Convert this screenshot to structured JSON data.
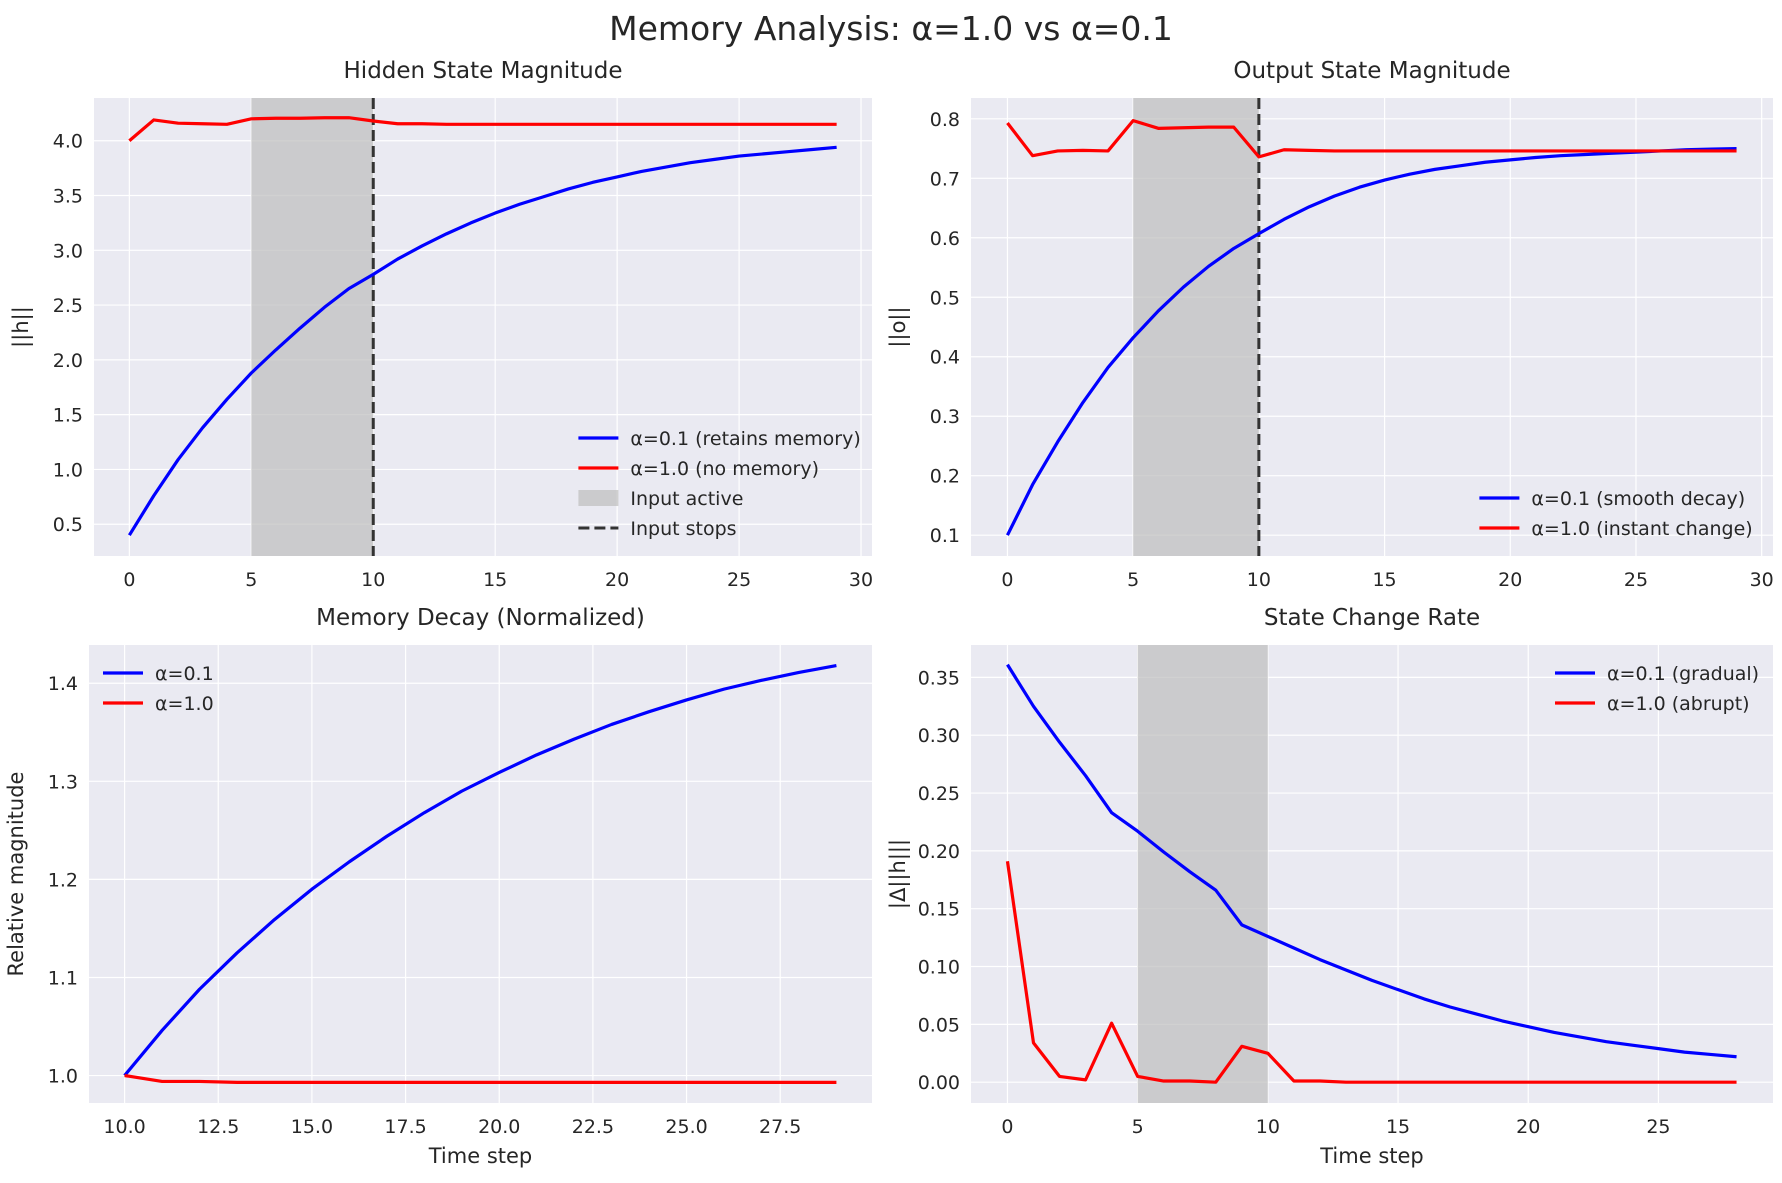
{
  "figure_title": "Memory Analysis: α=1.0 vs α=0.1",
  "colors": {
    "blue": "#0000ff",
    "red": "#ff0000",
    "axes_bg": "#eaeaf2",
    "grid": "#ffffff",
    "shade": "#bdbdbd",
    "vline": "#333333",
    "text": "#262626"
  },
  "chart_data": [
    {
      "type": "line",
      "title": "Hidden State Magnitude",
      "xlabel": "",
      "ylabel": "||h||",
      "xlim": [
        -1.45,
        30.45
      ],
      "ylim": [
        0.21,
        4.39
      ],
      "xticks": [
        0,
        5,
        10,
        15,
        20,
        25,
        30
      ],
      "yticks": [
        0.5,
        1.0,
        1.5,
        2.0,
        2.5,
        3.0,
        3.5,
        4.0
      ],
      "ytick_format": 1,
      "grid": true,
      "shade": {
        "x": [
          5,
          10
        ],
        "label": "Input active"
      },
      "vline": {
        "x": 10,
        "label": "Input stops"
      },
      "legend": "lower-right",
      "series": [
        {
          "name": "α=0.1 (retains memory)",
          "color": "#0000ff",
          "x": [
            0,
            1,
            2,
            3,
            4,
            5,
            6,
            7,
            8,
            9,
            10,
            11,
            12,
            13,
            14,
            15,
            16,
            17,
            18,
            19,
            20,
            21,
            22,
            23,
            24,
            25,
            26,
            27,
            28,
            29
          ],
          "values": [
            0.4,
            0.76,
            1.09,
            1.38,
            1.64,
            1.88,
            2.09,
            2.29,
            2.48,
            2.65,
            2.78,
            2.92,
            3.04,
            3.15,
            3.25,
            3.34,
            3.42,
            3.49,
            3.56,
            3.62,
            3.67,
            3.72,
            3.76,
            3.8,
            3.83,
            3.86,
            3.88,
            3.9,
            3.92,
            3.94
          ]
        },
        {
          "name": "α=1.0 (no memory)",
          "color": "#ff0000",
          "x": [
            0,
            1,
            2,
            3,
            4,
            5,
            6,
            7,
            8,
            9,
            10,
            11,
            12,
            13,
            14,
            15,
            16,
            17,
            18,
            19,
            20,
            21,
            22,
            23,
            24,
            25,
            26,
            27,
            28,
            29
          ],
          "values": [
            4.0,
            4.19,
            4.16,
            4.155,
            4.15,
            4.2,
            4.205,
            4.205,
            4.21,
            4.21,
            4.18,
            4.155,
            4.155,
            4.15,
            4.15,
            4.15,
            4.15,
            4.15,
            4.15,
            4.15,
            4.15,
            4.15,
            4.15,
            4.15,
            4.15,
            4.15,
            4.15,
            4.15,
            4.15,
            4.15
          ]
        }
      ]
    },
    {
      "type": "line",
      "title": "Output State Magnitude",
      "xlabel": "",
      "ylabel": "||o||",
      "xlim": [
        -1.45,
        30.45
      ],
      "ylim": [
        0.065,
        0.835
      ],
      "xticks": [
        0,
        5,
        10,
        15,
        20,
        25,
        30
      ],
      "yticks": [
        0.1,
        0.2,
        0.3,
        0.4,
        0.5,
        0.6,
        0.7,
        0.8
      ],
      "ytick_format": 1,
      "grid": true,
      "shade": {
        "x": [
          5,
          10
        ]
      },
      "vline": {
        "x": 10
      },
      "legend": "lower-right",
      "series": [
        {
          "name": "α=0.1 (smooth decay)",
          "color": "#0000ff",
          "x": [
            0,
            1,
            2,
            3,
            4,
            5,
            6,
            7,
            8,
            9,
            10,
            11,
            12,
            13,
            14,
            15,
            16,
            17,
            18,
            19,
            20,
            21,
            22,
            23,
            24,
            25,
            26,
            27,
            28,
            29
          ],
          "values": [
            0.1,
            0.185,
            0.257,
            0.323,
            0.382,
            0.432,
            0.477,
            0.517,
            0.552,
            0.582,
            0.607,
            0.631,
            0.652,
            0.67,
            0.685,
            0.697,
            0.707,
            0.715,
            0.721,
            0.727,
            0.731,
            0.735,
            0.738,
            0.74,
            0.742,
            0.744,
            0.746,
            0.748,
            0.749,
            0.75
          ]
        },
        {
          "name": "α=1.0 (instant change)",
          "color": "#ff0000",
          "x": [
            0,
            1,
            2,
            3,
            4,
            5,
            6,
            7,
            8,
            9,
            10,
            11,
            12,
            13,
            14,
            15,
            16,
            17,
            18,
            19,
            20,
            21,
            22,
            23,
            24,
            25,
            26,
            27,
            28,
            29
          ],
          "values": [
            0.793,
            0.738,
            0.746,
            0.747,
            0.746,
            0.797,
            0.784,
            0.785,
            0.786,
            0.786,
            0.736,
            0.748,
            0.747,
            0.746,
            0.746,
            0.746,
            0.746,
            0.746,
            0.746,
            0.746,
            0.746,
            0.746,
            0.746,
            0.746,
            0.746,
            0.746,
            0.746,
            0.746,
            0.746,
            0.746
          ]
        }
      ]
    },
    {
      "type": "line",
      "title": "Memory Decay (Normalized)",
      "xlabel": "Time step",
      "ylabel": "Relative magnitude",
      "xlim": [
        9.05,
        29.95
      ],
      "ylim": [
        0.972,
        1.439
      ],
      "xticks": [
        10.0,
        12.5,
        15.0,
        17.5,
        20.0,
        22.5,
        25.0,
        27.5
      ],
      "yticks": [
        1.0,
        1.1,
        1.2,
        1.3,
        1.4
      ],
      "xtick_format": 1,
      "ytick_format": 1,
      "grid": true,
      "legend": "upper-left",
      "series": [
        {
          "name": "α=0.1",
          "color": "#0000ff",
          "x": [
            10,
            11,
            12,
            13,
            14,
            15,
            16,
            17,
            18,
            19,
            20,
            21,
            22,
            23,
            24,
            25,
            26,
            27,
            28,
            29
          ],
          "values": [
            1.0,
            1.046,
            1.088,
            1.125,
            1.159,
            1.19,
            1.218,
            1.244,
            1.268,
            1.29,
            1.309,
            1.327,
            1.343,
            1.358,
            1.371,
            1.383,
            1.394,
            1.403,
            1.411,
            1.418
          ]
        },
        {
          "name": "α=1.0",
          "color": "#ff0000",
          "x": [
            10,
            11,
            12,
            13,
            14,
            15,
            16,
            17,
            18,
            19,
            20,
            21,
            22,
            23,
            24,
            25,
            26,
            27,
            28,
            29
          ],
          "values": [
            1.0,
            0.994,
            0.994,
            0.993,
            0.993,
            0.993,
            0.993,
            0.993,
            0.993,
            0.993,
            0.993,
            0.993,
            0.993,
            0.993,
            0.993,
            0.993,
            0.993,
            0.993,
            0.993,
            0.993
          ]
        }
      ]
    },
    {
      "type": "line",
      "title": "State Change Rate",
      "xlabel": "Time step",
      "ylabel": "|Δ||h|||",
      "xlim": [
        -1.4,
        29.4
      ],
      "ylim": [
        -0.018,
        0.378
      ],
      "xticks": [
        0,
        5,
        10,
        15,
        20,
        25
      ],
      "yticks": [
        0.0,
        0.05,
        0.1,
        0.15,
        0.2,
        0.25,
        0.3,
        0.35
      ],
      "ytick_format": 2,
      "grid": true,
      "shade": {
        "x": [
          5,
          10
        ]
      },
      "legend": "upper-right",
      "series": [
        {
          "name": "α=0.1 (gradual)",
          "color": "#0000ff",
          "x": [
            0,
            1,
            2,
            3,
            4,
            5,
            6,
            7,
            8,
            9,
            10,
            11,
            12,
            13,
            14,
            15,
            16,
            17,
            18,
            19,
            20,
            21,
            22,
            23,
            24,
            25,
            26,
            27,
            28
          ],
          "values": [
            0.361,
            0.325,
            0.294,
            0.265,
            0.233,
            0.217,
            0.199,
            0.182,
            0.166,
            0.136,
            0.126,
            0.116,
            0.106,
            0.097,
            0.088,
            0.08,
            0.072,
            0.065,
            0.059,
            0.053,
            0.048,
            0.043,
            0.039,
            0.035,
            0.032,
            0.029,
            0.026,
            0.024,
            0.022
          ]
        },
        {
          "name": "α=1.0 (abrupt)",
          "color": "#ff0000",
          "x": [
            0,
            1,
            2,
            3,
            4,
            5,
            6,
            7,
            8,
            9,
            10,
            11,
            12,
            13,
            14,
            15,
            16,
            17,
            18,
            19,
            20,
            21,
            22,
            23,
            24,
            25,
            26,
            27,
            28
          ],
          "values": [
            0.191,
            0.034,
            0.005,
            0.002,
            0.051,
            0.005,
            0.001,
            0.001,
            0.0,
            0.031,
            0.025,
            0.001,
            0.001,
            0.0,
            0.0,
            0.0,
            0.0,
            0.0,
            0.0,
            0.0,
            0.0,
            0.0,
            0.0,
            0.0,
            0.0,
            0.0,
            0.0,
            0.0,
            0.0
          ]
        }
      ]
    }
  ]
}
